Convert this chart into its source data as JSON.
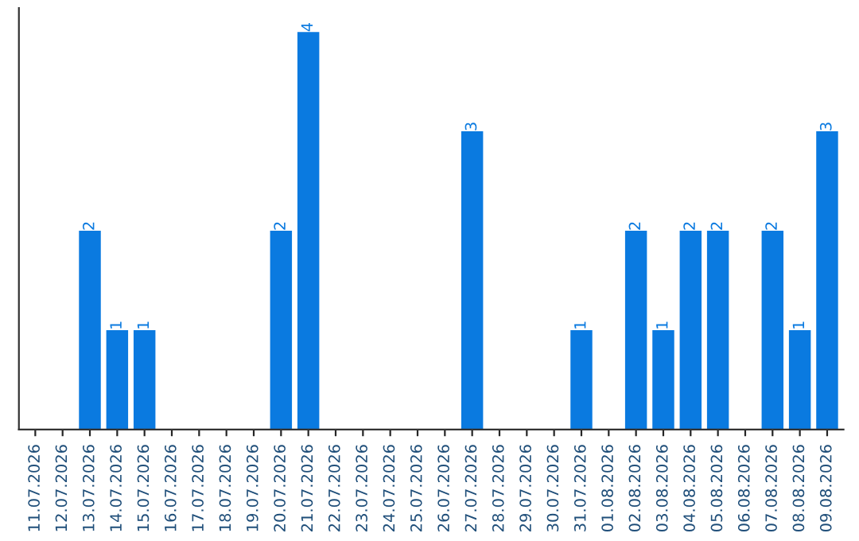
{
  "chart_data": {
    "type": "bar",
    "categories": [
      "11.07.2026",
      "12.07.2026",
      "13.07.2026",
      "14.07.2026",
      "15.07.2026",
      "16.07.2026",
      "17.07.2026",
      "18.07.2026",
      "19.07.2026",
      "20.07.2026",
      "21.07.2026",
      "22.07.2026",
      "23.07.2026",
      "24.07.2026",
      "25.07.2026",
      "26.07.2026",
      "27.07.2026",
      "28.07.2026",
      "29.07.2026",
      "30.07.2026",
      "31.07.2026",
      "01.08.2026",
      "02.08.2026",
      "03.08.2026",
      "04.08.2026",
      "05.08.2026",
      "06.08.2026",
      "07.08.2026",
      "08.08.2026",
      "09.08.2026"
    ],
    "values": [
      0,
      0,
      2,
      1,
      1,
      0,
      0,
      0,
      0,
      2,
      4,
      0,
      0,
      0,
      0,
      0,
      3,
      0,
      0,
      0,
      1,
      0,
      2,
      1,
      2,
      2,
      0,
      2,
      1,
      3
    ],
    "value_labels": [
      null,
      null,
      "2",
      "1",
      "1",
      null,
      null,
      null,
      null,
      "2",
      "4",
      null,
      null,
      null,
      null,
      null,
      "3",
      null,
      null,
      null,
      "1",
      null,
      "2",
      "1",
      "2",
      "2",
      null,
      "2",
      "1",
      "3"
    ],
    "color": "#0a7ae0",
    "grid": false,
    "legend": false
  }
}
